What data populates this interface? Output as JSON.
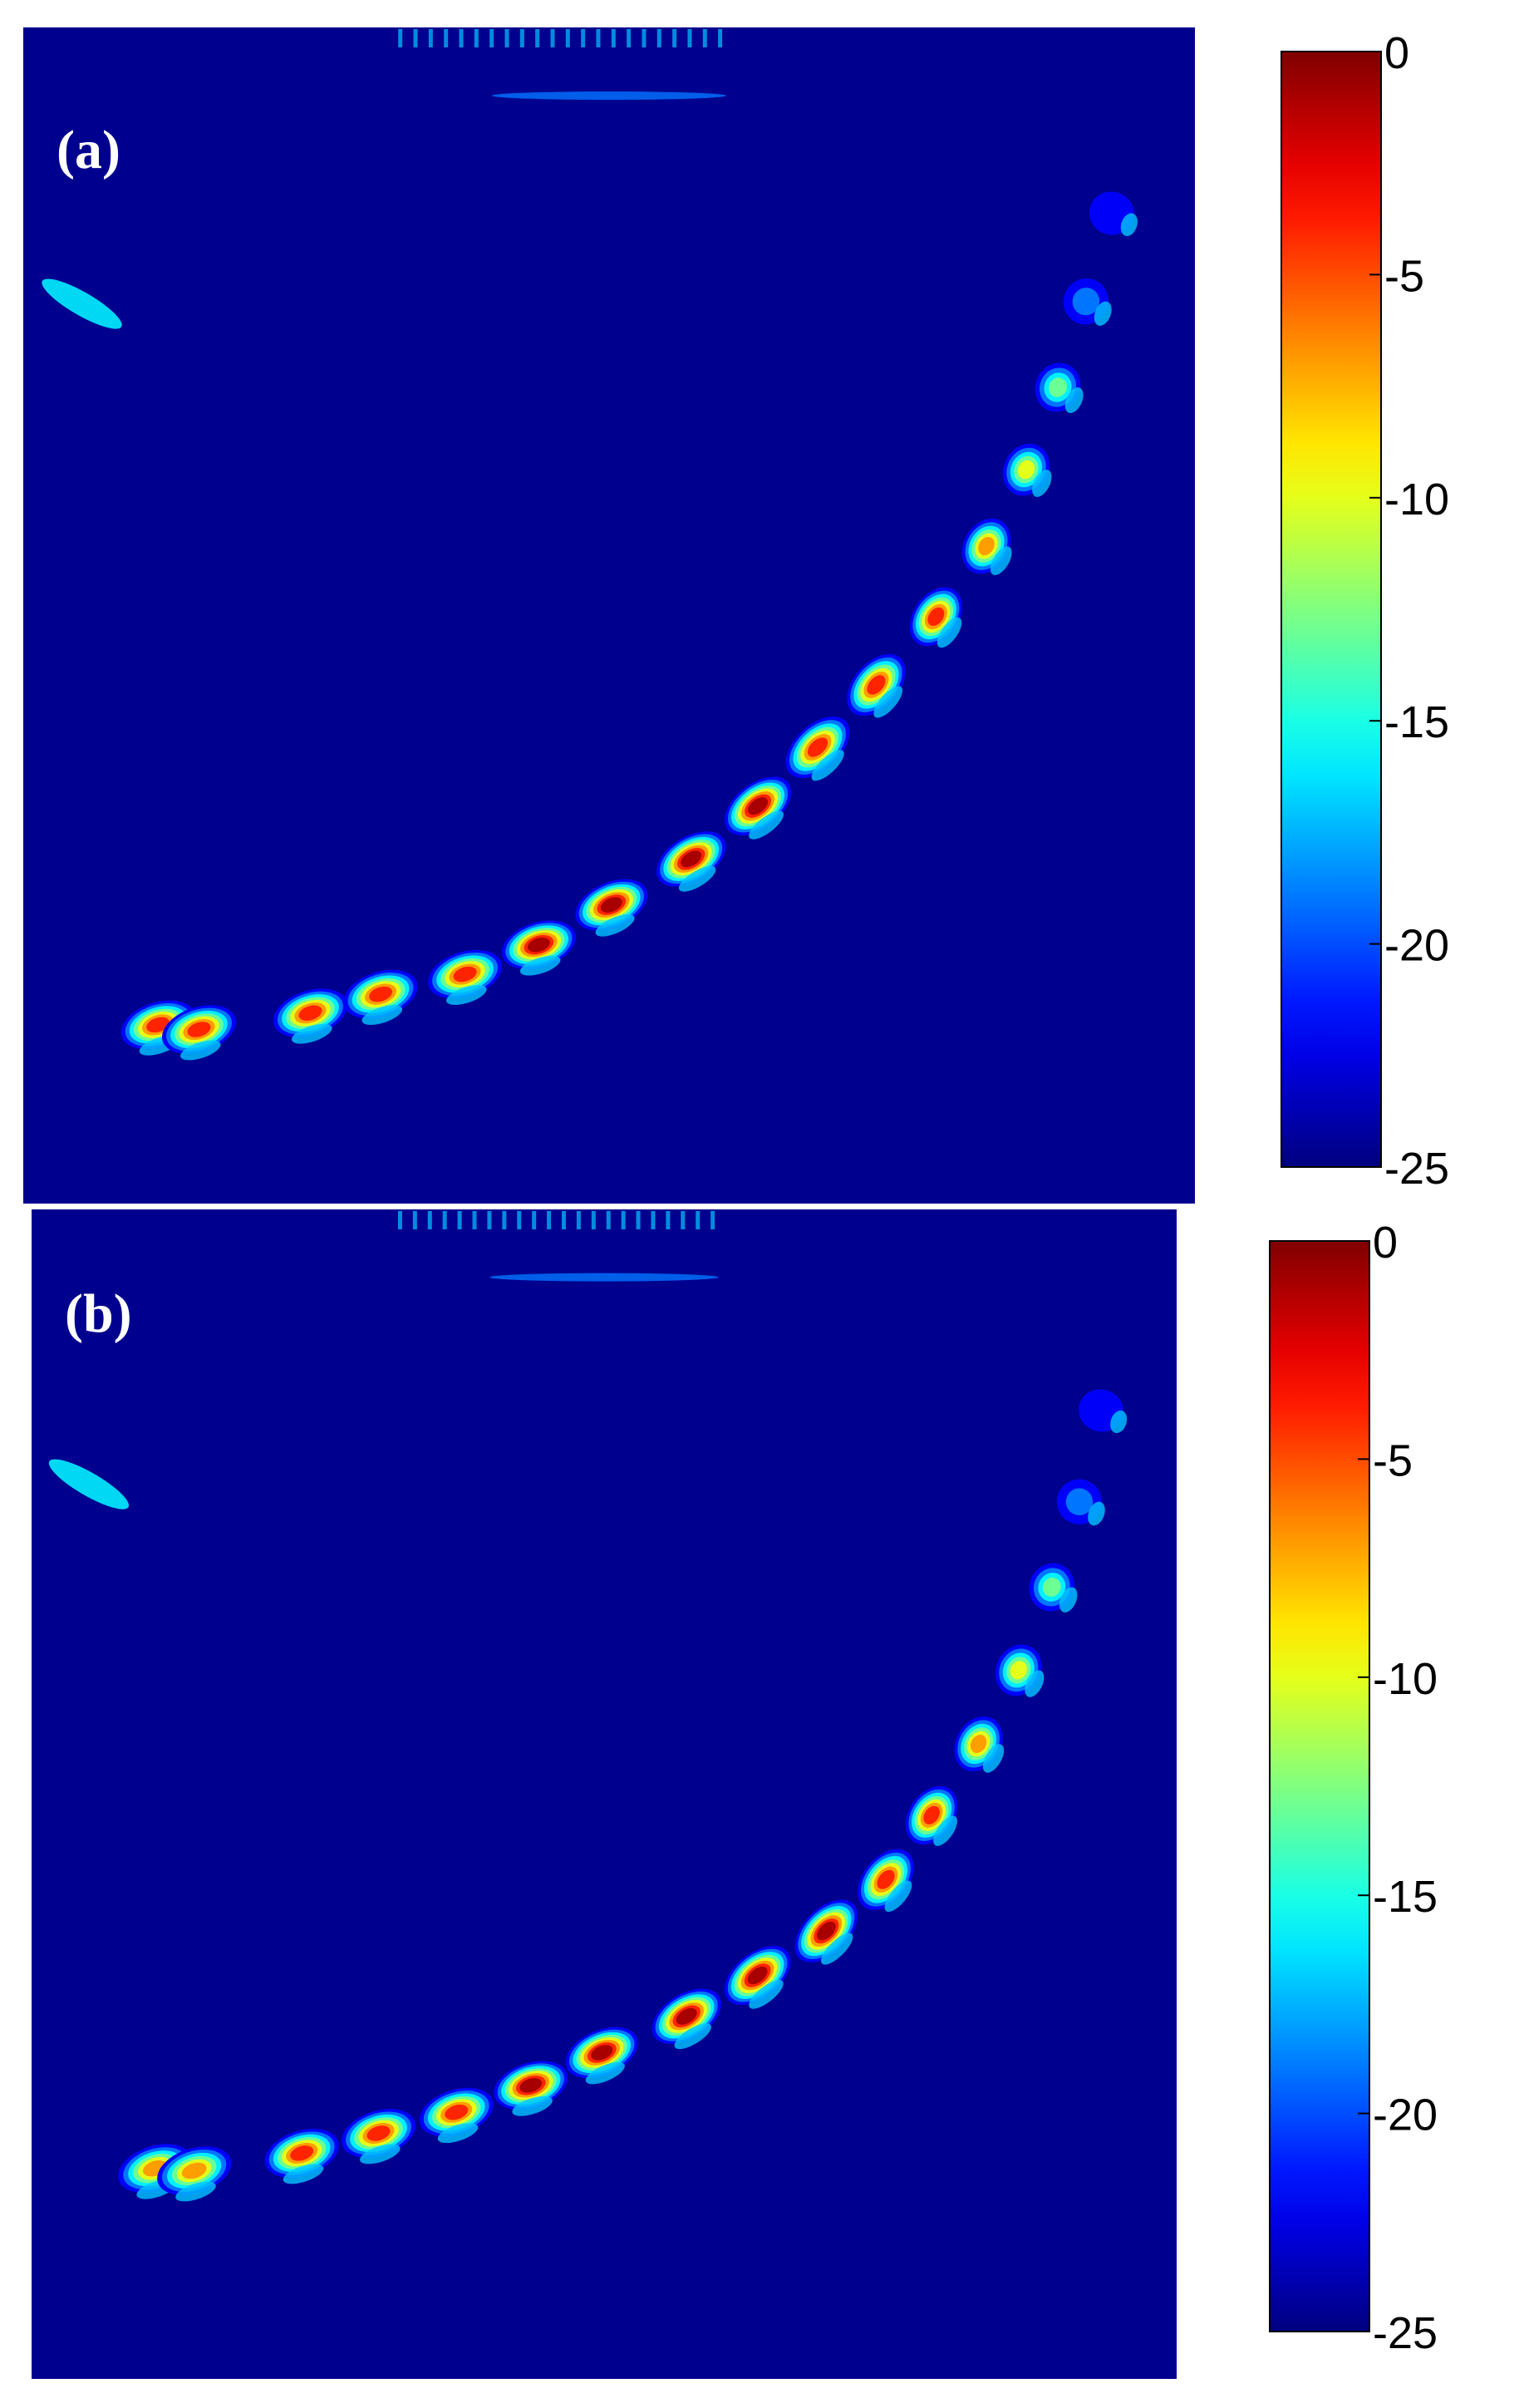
{
  "chart_data": [
    {
      "type": "heatmap",
      "panel_label": "(a)",
      "colorbar": {
        "ticks": [
          0,
          -5,
          -10,
          -15,
          -20,
          -25
        ],
        "tick_labels": [
          "0",
          "-5",
          "-10",
          "-15",
          "-20",
          "-25"
        ],
        "range": [
          -25,
          0
        ],
        "colormap": "jet"
      },
      "background_value": -25,
      "hotspots": [
        {
          "x": 0.115,
          "y": 0.848,
          "peak": -3
        },
        {
          "x": 0.15,
          "y": 0.852,
          "peak": -4
        },
        {
          "x": 0.245,
          "y": 0.838,
          "peak": -2
        },
        {
          "x": 0.305,
          "y": 0.822,
          "peak": -2
        },
        {
          "x": 0.377,
          "y": 0.805,
          "peak": -2
        },
        {
          "x": 0.44,
          "y": 0.78,
          "peak": -1
        },
        {
          "x": 0.502,
          "y": 0.746,
          "peak": -1
        },
        {
          "x": 0.57,
          "y": 0.707,
          "peak": -1
        },
        {
          "x": 0.627,
          "y": 0.662,
          "peak": -1
        },
        {
          "x": 0.678,
          "y": 0.612,
          "peak": -2
        },
        {
          "x": 0.728,
          "y": 0.559,
          "peak": -2
        },
        {
          "x": 0.779,
          "y": 0.501,
          "peak": -4
        },
        {
          "x": 0.822,
          "y": 0.441,
          "peak": -6
        },
        {
          "x": 0.856,
          "y": 0.376,
          "peak": -8
        },
        {
          "x": 0.883,
          "y": 0.306,
          "peak": -13
        },
        {
          "x": 0.907,
          "y": 0.233,
          "peak": -17
        },
        {
          "x": 0.929,
          "y": 0.158,
          "peak": -21
        }
      ]
    },
    {
      "type": "heatmap",
      "panel_label": "(b)",
      "colorbar": {
        "ticks": [
          0,
          -5,
          -10,
          -15,
          -20,
          -25
        ],
        "tick_labels": [
          "0",
          "-5",
          "-10",
          "-15",
          "-20",
          "-25"
        ],
        "range": [
          -25,
          0
        ],
        "colormap": "jet"
      },
      "background_value": -25,
      "hotspots": [
        {
          "x": 0.108,
          "y": 0.82,
          "peak": -5
        },
        {
          "x": 0.142,
          "y": 0.822,
          "peak": -6
        },
        {
          "x": 0.236,
          "y": 0.807,
          "peak": -3
        },
        {
          "x": 0.303,
          "y": 0.79,
          "peak": -2
        },
        {
          "x": 0.371,
          "y": 0.772,
          "peak": -2
        },
        {
          "x": 0.436,
          "y": 0.749,
          "peak": -1
        },
        {
          "x": 0.498,
          "y": 0.721,
          "peak": -1
        },
        {
          "x": 0.572,
          "y": 0.69,
          "peak": -1
        },
        {
          "x": 0.634,
          "y": 0.655,
          "peak": -1
        },
        {
          "x": 0.694,
          "y": 0.617,
          "peak": -1
        },
        {
          "x": 0.746,
          "y": 0.573,
          "peak": -2
        },
        {
          "x": 0.786,
          "y": 0.518,
          "peak": -3
        },
        {
          "x": 0.827,
          "y": 0.457,
          "peak": -5
        },
        {
          "x": 0.862,
          "y": 0.394,
          "peak": -8
        },
        {
          "x": 0.891,
          "y": 0.323,
          "peak": -12
        },
        {
          "x": 0.915,
          "y": 0.25,
          "peak": -17
        },
        {
          "x": 0.934,
          "y": 0.172,
          "peak": -21
        }
      ]
    }
  ]
}
